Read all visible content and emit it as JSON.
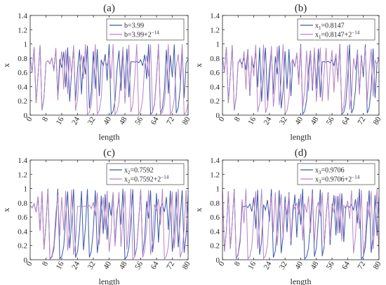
{
  "colors": {
    "series1": "#3a58a8",
    "series2": "#b784c4",
    "axis": "#262626",
    "background": "#ffffff"
  },
  "chart_data": [
    {
      "type": "line",
      "title": "(a)",
      "xlabel": "length",
      "ylabel": "x",
      "xlim": [
        0,
        80
      ],
      "ylim": [
        0,
        1.4
      ],
      "xticks": [
        "0",
        "8",
        "16",
        "24",
        "32",
        "40",
        "48",
        "56",
        "64",
        "72",
        "80"
      ],
      "yticks": [
        "0",
        "0.2",
        "0.4",
        "0.6",
        "0.8",
        "1",
        "1.2",
        "1.4"
      ],
      "grid": false,
      "legend": "top-right",
      "series": [
        {
          "name": "b=3.99",
          "base": "b=3.99",
          "sub": "",
          "sup": "",
          "x0": 0.8147,
          "b": 3.99
        },
        {
          "name": "b=3.99+2^-14",
          "base": "b=3.99+2",
          "sub": "",
          "sup": "−14",
          "x0": 0.8147,
          "b": 3.99006103515625
        }
      ]
    },
    {
      "type": "line",
      "title": "(b)",
      "xlabel": "length",
      "ylabel": "x",
      "xlim": [
        0,
        80
      ],
      "ylim": [
        0,
        1.4
      ],
      "xticks": [
        "0",
        "8",
        "16",
        "24",
        "32",
        "40",
        "48",
        "56",
        "64",
        "72",
        "80"
      ],
      "yticks": [
        "0",
        "0.2",
        "0.4",
        "0.6",
        "0.8",
        "1",
        "1.2",
        "1.4"
      ],
      "grid": false,
      "legend": "top-right",
      "series": [
        {
          "name": "x1=0.8147",
          "base": "x",
          "sub": "1",
          "tail": "=0.8147",
          "sup": "",
          "x0": 0.8147,
          "b": 3.99
        },
        {
          "name": "x1=0.8147+2^-14",
          "base": "x",
          "sub": "1",
          "tail": "=0.8147+2",
          "sup": "−14",
          "x0": 0.81476103515625,
          "b": 3.99
        }
      ]
    },
    {
      "type": "line",
      "title": "(c)",
      "xlabel": "length",
      "ylabel": "x",
      "xlim": [
        0,
        80
      ],
      "ylim": [
        0,
        1.4
      ],
      "xticks": [
        "0",
        "8",
        "16",
        "24",
        "32",
        "40",
        "48",
        "56",
        "64",
        "72",
        "80"
      ],
      "yticks": [
        "0",
        "0.2",
        "0.4",
        "0.6",
        "0.8",
        "1",
        "1.2",
        "1.4"
      ],
      "grid": false,
      "legend": "top-right",
      "series": [
        {
          "name": "x2=0.7592",
          "base": "x",
          "sub": "2",
          "tail": "=0.7592",
          "sup": "",
          "x0": 0.7592,
          "b": 3.99
        },
        {
          "name": "x2=0.7592+2^-14",
          "base": "x",
          "sub": "2",
          "tail": "=0.7592+2",
          "sup": "−14",
          "x0": 0.75926103515625,
          "b": 3.99
        }
      ]
    },
    {
      "type": "line",
      "title": "(d)",
      "xlabel": "length",
      "ylabel": "x",
      "xlim": [
        0,
        80
      ],
      "ylim": [
        0,
        1.4
      ],
      "xticks": [
        "0",
        "8",
        "16",
        "24",
        "32",
        "40",
        "48",
        "56",
        "64",
        "72",
        "80"
      ],
      "yticks": [
        "0",
        "0.2",
        "0.4",
        "0.6",
        "0.8",
        "1",
        "1.2",
        "1.4"
      ],
      "grid": false,
      "legend": "top-right",
      "series": [
        {
          "name": "x3=0.9706",
          "base": "x",
          "sub": "3",
          "tail": "=0.9706",
          "sup": "",
          "x0": 0.9706,
          "b": 3.99
        },
        {
          "name": "x3=0.9706+2^-14",
          "base": "x",
          "sub": "3",
          "tail": "=0.9706+2",
          "sup": "−14",
          "x0": 0.97066103515625,
          "b": 3.99
        }
      ]
    }
  ]
}
